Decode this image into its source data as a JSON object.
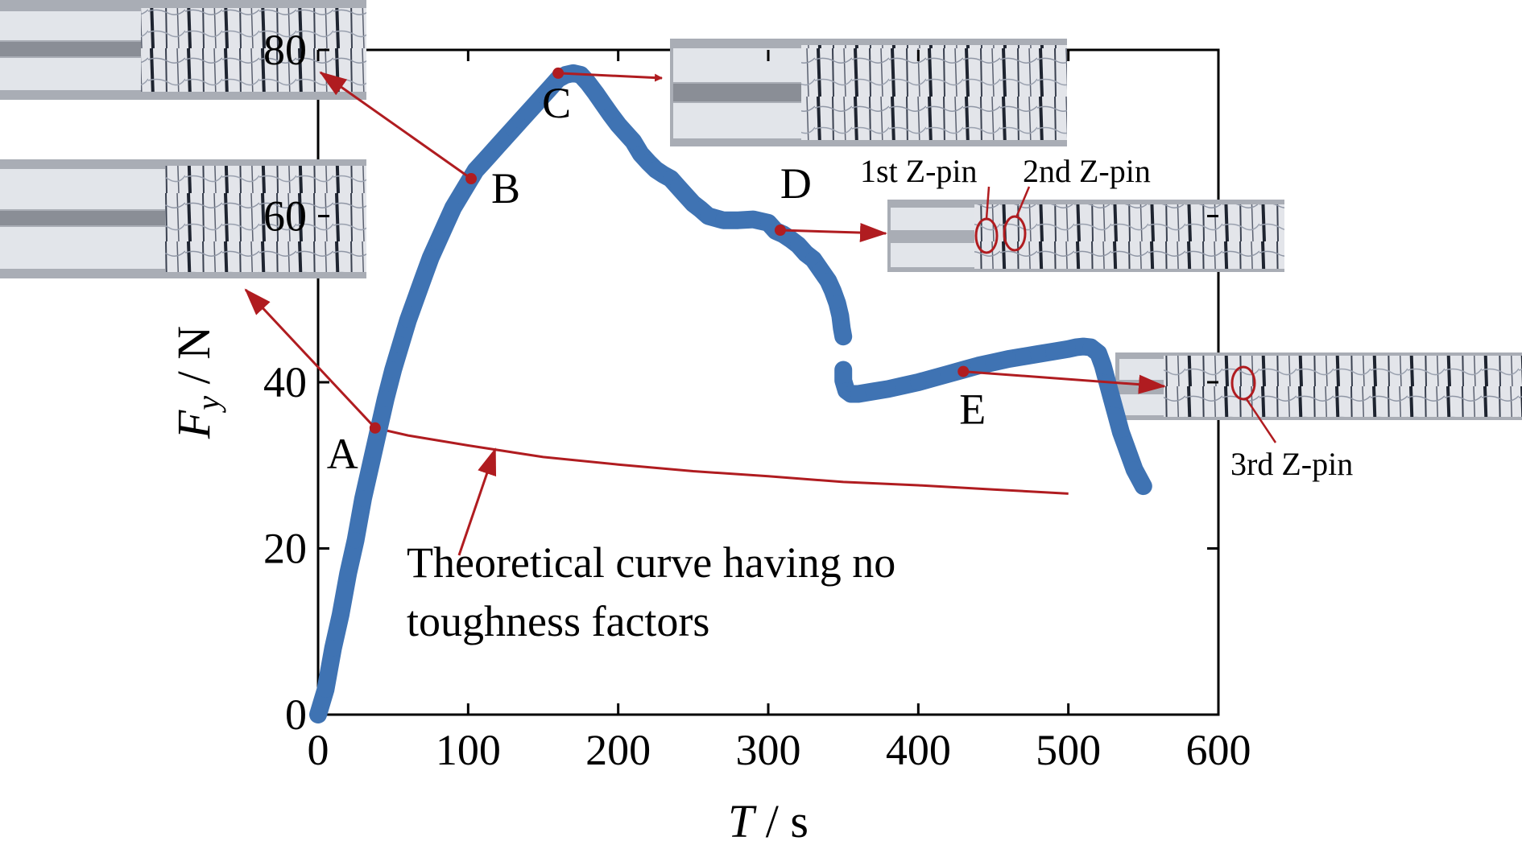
{
  "chart_data": {
    "type": "scatter",
    "title": "",
    "xlabel": {
      "symbol": "T",
      "unit": " / s"
    },
    "ylabel": {
      "symbol": "F",
      "subscript": "y",
      "unit": " / N"
    },
    "xlim": [
      0,
      600
    ],
    "ylim": [
      0,
      80
    ],
    "xticks": [
      0,
      100,
      200,
      300,
      400,
      500,
      600
    ],
    "yticks": [
      0,
      20,
      40,
      60,
      80
    ],
    "grid": false,
    "series": [
      {
        "color": "#3f73b3",
        "points": [
          [
            0,
            0
          ],
          [
            5,
            3
          ],
          [
            10,
            8
          ],
          [
            15,
            12
          ],
          [
            20,
            17
          ],
          [
            25,
            21
          ],
          [
            30,
            26
          ],
          [
            35,
            30
          ],
          [
            40,
            34
          ],
          [
            45,
            38
          ],
          [
            50,
            41.5
          ],
          [
            55,
            44.5
          ],
          [
            60,
            47.5
          ],
          [
            65,
            50
          ],
          [
            70,
            52.5
          ],
          [
            75,
            55
          ],
          [
            80,
            57
          ],
          [
            85,
            59
          ],
          [
            90,
            61
          ],
          [
            95,
            62.5
          ],
          [
            100,
            64
          ],
          [
            105,
            65.5
          ],
          [
            110,
            66.5
          ],
          [
            115,
            67.5
          ],
          [
            120,
            68.5
          ],
          [
            125,
            69.5
          ],
          [
            130,
            70.5
          ],
          [
            135,
            71.5
          ],
          [
            140,
            72.5
          ],
          [
            145,
            73.5
          ],
          [
            150,
            74.5
          ],
          [
            155,
            75.5
          ],
          [
            160,
            76.5
          ],
          [
            165,
            77
          ],
          [
            170,
            77.2
          ],
          [
            175,
            77
          ],
          [
            180,
            76
          ],
          [
            185,
            74.8
          ],
          [
            190,
            73.5
          ],
          [
            195,
            72.2
          ],
          [
            200,
            71
          ],
          [
            205,
            70
          ],
          [
            210,
            69
          ],
          [
            215,
            67.5
          ],
          [
            220,
            66.5
          ],
          [
            225,
            65.6
          ],
          [
            230,
            65
          ],
          [
            235,
            64.5
          ],
          [
            240,
            63.5
          ],
          [
            245,
            62.5
          ],
          [
            250,
            61.5
          ],
          [
            255,
            60.8
          ],
          [
            260,
            60
          ],
          [
            270,
            59.5
          ],
          [
            280,
            59.5
          ],
          [
            290,
            59.6
          ],
          [
            300,
            59.2
          ],
          [
            305,
            58.2
          ],
          [
            310,
            57.8
          ],
          [
            315,
            57.2
          ],
          [
            320,
            56.5
          ],
          [
            325,
            55.5
          ],
          [
            330,
            54.8
          ],
          [
            335,
            53.5
          ],
          [
            340,
            52.2
          ],
          [
            343,
            51
          ],
          [
            346,
            49.5
          ],
          [
            348,
            48
          ],
          [
            349,
            46.5
          ],
          [
            350,
            45.5
          ],
          [
            350,
            41.5
          ],
          [
            350,
            40.2
          ],
          [
            352,
            39
          ],
          [
            355,
            38.6
          ],
          [
            360,
            38.6
          ],
          [
            370,
            38.9
          ],
          [
            380,
            39.2
          ],
          [
            390,
            39.6
          ],
          [
            400,
            40
          ],
          [
            410,
            40.5
          ],
          [
            420,
            41
          ],
          [
            430,
            41.5
          ],
          [
            440,
            42
          ],
          [
            450,
            42.4
          ],
          [
            460,
            42.8
          ],
          [
            470,
            43.1
          ],
          [
            480,
            43.4
          ],
          [
            490,
            43.7
          ],
          [
            500,
            44
          ],
          [
            505,
            44.2
          ],
          [
            510,
            44.3
          ],
          [
            515,
            44.2
          ],
          [
            520,
            43.5
          ],
          [
            523,
            42
          ],
          [
            526,
            40
          ],
          [
            529,
            38
          ],
          [
            532,
            36
          ],
          [
            535,
            34
          ],
          [
            538,
            32.5
          ],
          [
            541,
            31
          ],
          [
            544,
            29.5
          ],
          [
            547,
            28.5
          ],
          [
            550,
            27.5
          ]
        ]
      }
    ],
    "theoretical_curve": {
      "color": "#b01c20",
      "points": [
        [
          0,
          0
        ],
        [
          5,
          4.7
        ],
        [
          10,
          9.4
        ],
        [
          15,
          14.1
        ],
        [
          20,
          18.8
        ],
        [
          25,
          23.5
        ],
        [
          30,
          28.2
        ],
        [
          35,
          32.9
        ],
        [
          38,
          34.5
        ],
        [
          60,
          33.6
        ],
        [
          100,
          32.4
        ],
        [
          150,
          31
        ],
        [
          200,
          30.1
        ],
        [
          250,
          29.3
        ],
        [
          300,
          28.7
        ],
        [
          350,
          28
        ],
        [
          400,
          27.6
        ],
        [
          450,
          27.1
        ],
        [
          500,
          26.6
        ]
      ]
    },
    "labeled_points": [
      {
        "label": "A",
        "x": 38,
        "y": 34.5
      },
      {
        "label": "B",
        "x": 102,
        "y": 64.5
      },
      {
        "label": "C",
        "x": 160,
        "y": 77.2
      },
      {
        "label": "D",
        "x": 308,
        "y": 58.3
      },
      {
        "label": "E",
        "x": 430,
        "y": 41.3
      }
    ],
    "annotations": {
      "theory_line1": "Theoretical curve having  no",
      "theory_line2": "toughness factors",
      "zpin_1": "1st Z-pin",
      "zpin_2": "2nd Z-pin",
      "zpin_3": "3rd Z-pin"
    },
    "accent_color": "#b01c20"
  }
}
